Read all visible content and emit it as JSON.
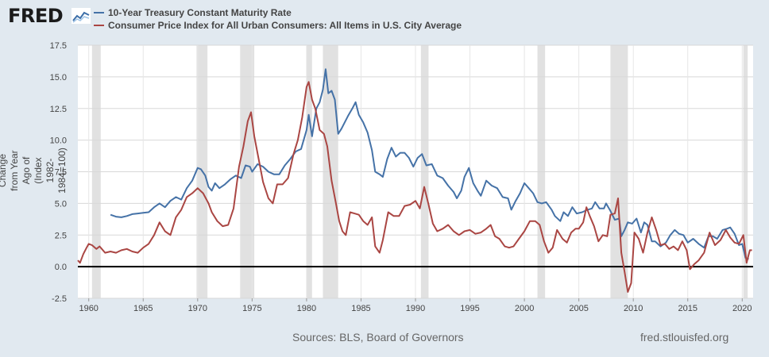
{
  "header": {
    "logo_text": "FRED",
    "logo_mark": "fred-chart-logo-icon"
  },
  "footer": {
    "sources": "Sources: BLS, Board of Governors",
    "site": "fred.stlouisfed.org"
  },
  "chart_data": {
    "type": "line",
    "title": "",
    "xlabel": "",
    "ylabel": "Percent, Percent Change from Year Ago of (Index 1982-1984=100)",
    "xlim": [
      1959,
      2021
    ],
    "ylim": [
      -2.5,
      17.5
    ],
    "yticks": [
      -2.5,
      0.0,
      2.5,
      5.0,
      7.5,
      10.0,
      12.5,
      15.0,
      17.5
    ],
    "ytick_labels": [
      "-2.5",
      "0.0",
      "2.5",
      "5.0",
      "7.5",
      "10.0",
      "12.5",
      "15.0",
      "17.5"
    ],
    "xticks": [
      1960,
      1965,
      1970,
      1975,
      1980,
      1985,
      1990,
      1995,
      2000,
      2005,
      2010,
      2015,
      2020
    ],
    "xtick_labels": [
      "1960",
      "1965",
      "1970",
      "1975",
      "1980",
      "1985",
      "1990",
      "1995",
      "2000",
      "2005",
      "2010",
      "2015",
      "2020"
    ],
    "grid": true,
    "legend_position": "top-left",
    "recessions": [
      [
        1960.3,
        1961.1
      ],
      [
        1969.9,
        1970.9
      ],
      [
        1973.9,
        1975.2
      ],
      [
        1980.0,
        1980.5
      ],
      [
        1981.5,
        1982.9
      ],
      [
        1990.5,
        1991.2
      ],
      [
        2001.2,
        2001.9
      ],
      [
        2007.9,
        2009.5
      ],
      [
        2020.1,
        2020.5
      ]
    ],
    "zero_line": 0,
    "series": [
      {
        "name": "10-Year Treasury Constant Maturity Rate",
        "color": "#4572a7",
        "x": [
          1962.0,
          1962.5,
          1963.0,
          1963.5,
          1964.0,
          1964.5,
          1965.0,
          1965.5,
          1966.0,
          1966.5,
          1967.0,
          1967.5,
          1968.0,
          1968.5,
          1969.0,
          1969.5,
          1970.0,
          1970.3,
          1970.7,
          1971.0,
          1971.3,
          1971.6,
          1972.0,
          1972.5,
          1973.0,
          1973.5,
          1974.0,
          1974.4,
          1974.8,
          1975.0,
          1975.5,
          1976.0,
          1976.5,
          1977.0,
          1977.5,
          1978.0,
          1978.5,
          1979.0,
          1979.5,
          1980.0,
          1980.2,
          1980.5,
          1980.9,
          1981.2,
          1981.5,
          1981.75,
          1982.0,
          1982.3,
          1982.6,
          1982.9,
          1983.2,
          1983.5,
          1983.8,
          1984.2,
          1984.5,
          1984.8,
          1985.2,
          1985.6,
          1986.0,
          1986.3,
          1986.7,
          1987.0,
          1987.4,
          1987.8,
          1988.2,
          1988.6,
          1989.0,
          1989.4,
          1989.8,
          1990.2,
          1990.6,
          1991.0,
          1991.5,
          1992.0,
          1992.5,
          1993.0,
          1993.5,
          1993.8,
          1994.2,
          1994.5,
          1994.9,
          1995.3,
          1995.7,
          1996.0,
          1996.5,
          1997.0,
          1997.5,
          1998.0,
          1998.5,
          1998.8,
          1999.2,
          1999.6,
          2000.0,
          2000.4,
          2000.8,
          2001.2,
          2001.6,
          2002.0,
          2002.5,
          2002.8,
          2003.3,
          2003.6,
          2004.0,
          2004.4,
          2004.8,
          2005.3,
          2005.8,
          2006.2,
          2006.5,
          2006.9,
          2007.3,
          2007.5,
          2007.9,
          2008.3,
          2008.7,
          2008.9,
          2009.2,
          2009.5,
          2009.9,
          2010.3,
          2010.7,
          2011.0,
          2011.3,
          2011.7,
          2012.0,
          2012.5,
          2013.0,
          2013.4,
          2013.8,
          2014.2,
          2014.6,
          2015.0,
          2015.5,
          2016.0,
          2016.5,
          2016.9,
          2017.3,
          2017.7,
          2018.2,
          2018.6,
          2018.9,
          2019.3,
          2019.7,
          2020.0,
          2020.3,
          2020.6
        ],
        "values": [
          4.1,
          3.95,
          3.9,
          4.0,
          4.15,
          4.2,
          4.25,
          4.3,
          4.7,
          5.0,
          4.7,
          5.2,
          5.5,
          5.3,
          6.2,
          6.8,
          7.8,
          7.7,
          7.2,
          6.3,
          6.0,
          6.6,
          6.2,
          6.5,
          6.9,
          7.2,
          7.0,
          8.0,
          7.9,
          7.5,
          8.1,
          7.9,
          7.5,
          7.3,
          7.3,
          8.0,
          8.5,
          9.1,
          9.3,
          10.8,
          12.0,
          10.3,
          12.5,
          13.0,
          14.0,
          15.6,
          13.7,
          13.9,
          13.2,
          10.5,
          10.9,
          11.4,
          11.9,
          12.5,
          13.0,
          12.0,
          11.4,
          10.6,
          9.2,
          7.5,
          7.3,
          7.1,
          8.5,
          9.4,
          8.7,
          9.0,
          9.0,
          8.6,
          7.9,
          8.6,
          8.9,
          8.0,
          8.1,
          7.2,
          7.0,
          6.4,
          5.9,
          5.4,
          6.0,
          7.1,
          7.8,
          6.6,
          6.0,
          5.6,
          6.8,
          6.4,
          6.2,
          5.5,
          5.4,
          4.5,
          5.2,
          5.8,
          6.6,
          6.2,
          5.8,
          5.1,
          5.0,
          5.1,
          4.5,
          4.0,
          3.6,
          4.3,
          4.0,
          4.7,
          4.2,
          4.3,
          4.5,
          4.6,
          5.1,
          4.6,
          4.6,
          5.0,
          4.4,
          3.7,
          3.8,
          2.4,
          2.9,
          3.5,
          3.4,
          3.8,
          2.7,
          3.5,
          3.3,
          2.0,
          2.0,
          1.6,
          1.9,
          2.5,
          2.9,
          2.6,
          2.5,
          1.9,
          2.2,
          1.8,
          1.5,
          2.4,
          2.4,
          2.2,
          2.9,
          3.0,
          3.1,
          2.6,
          1.7,
          1.8,
          0.7,
          0.6
        ]
      },
      {
        "name": "Consumer Price Index for All Urban Consumers: All Items in U.S. City Average",
        "color": "#aa4643",
        "x": [
          1959.0,
          1959.2,
          1959.5,
          1959.8,
          1960.0,
          1960.3,
          1960.7,
          1961.0,
          1961.5,
          1962.0,
          1962.5,
          1963.0,
          1963.5,
          1964.0,
          1964.5,
          1965.0,
          1965.5,
          1966.0,
          1966.5,
          1967.0,
          1967.5,
          1968.0,
          1968.5,
          1969.0,
          1969.5,
          1970.0,
          1970.5,
          1971.0,
          1971.3,
          1971.8,
          1972.3,
          1972.8,
          1973.3,
          1973.8,
          1974.2,
          1974.6,
          1974.9,
          1975.2,
          1975.6,
          1976.0,
          1976.5,
          1976.9,
          1977.3,
          1977.8,
          1978.3,
          1978.8,
          1979.2,
          1979.6,
          1980.0,
          1980.2,
          1980.5,
          1980.8,
          1981.2,
          1981.6,
          1981.9,
          1982.3,
          1982.7,
          1983.0,
          1983.3,
          1983.6,
          1984.0,
          1984.4,
          1984.8,
          1985.2,
          1985.6,
          1986.0,
          1986.3,
          1986.7,
          1987.0,
          1987.5,
          1988.0,
          1988.5,
          1989.0,
          1989.5,
          1990.0,
          1990.4,
          1990.8,
          1991.2,
          1991.6,
          1992.0,
          1992.5,
          1993.0,
          1993.5,
          1994.0,
          1994.5,
          1995.0,
          1995.5,
          1996.0,
          1996.5,
          1996.9,
          1997.3,
          1997.7,
          1998.2,
          1998.6,
          1999.0,
          1999.5,
          2000.0,
          2000.5,
          2001.0,
          2001.4,
          2001.8,
          2002.2,
          2002.6,
          2003.0,
          2003.5,
          2003.9,
          2004.3,
          2004.7,
          2005.0,
          2005.4,
          2005.7,
          2006.0,
          2006.4,
          2006.8,
          2007.2,
          2007.6,
          2007.9,
          2008.3,
          2008.6,
          2008.9,
          2009.2,
          2009.5,
          2009.8,
          2010.1,
          2010.5,
          2010.9,
          2011.3,
          2011.7,
          2012.1,
          2012.5,
          2012.9,
          2013.3,
          2013.7,
          2014.1,
          2014.5,
          2014.9,
          2015.2,
          2015.6,
          2016.0,
          2016.5,
          2017.0,
          2017.5,
          2018.0,
          2018.5,
          2018.9,
          2019.3,
          2019.7,
          2020.1,
          2020.4,
          2020.7,
          2020.9
        ],
        "values": [
          0.5,
          0.3,
          1.0,
          1.5,
          1.8,
          1.7,
          1.4,
          1.6,
          1.1,
          1.2,
          1.1,
          1.3,
          1.4,
          1.2,
          1.1,
          1.5,
          1.8,
          2.5,
          3.5,
          2.8,
          2.5,
          3.9,
          4.5,
          5.5,
          5.8,
          6.2,
          5.8,
          5.0,
          4.3,
          3.6,
          3.2,
          3.3,
          4.6,
          7.9,
          9.5,
          11.5,
          12.2,
          10.3,
          8.5,
          6.7,
          5.4,
          5.0,
          6.5,
          6.5,
          7.0,
          8.9,
          10.0,
          11.8,
          14.2,
          14.6,
          13.2,
          12.5,
          10.8,
          10.5,
          9.5,
          6.8,
          5.0,
          3.6,
          2.8,
          2.5,
          4.3,
          4.2,
          4.1,
          3.6,
          3.3,
          3.9,
          1.6,
          1.1,
          2.1,
          4.3,
          4.0,
          4.0,
          4.8,
          4.9,
          5.2,
          4.6,
          6.3,
          4.9,
          3.4,
          2.8,
          3.0,
          3.3,
          2.8,
          2.5,
          2.8,
          2.9,
          2.6,
          2.7,
          3.0,
          3.3,
          2.4,
          2.2,
          1.6,
          1.5,
          1.6,
          2.2,
          2.8,
          3.6,
          3.6,
          3.3,
          2.0,
          1.1,
          1.5,
          2.9,
          2.2,
          1.9,
          2.7,
          3.0,
          3.0,
          3.5,
          4.7,
          4.0,
          3.2,
          2.0,
          2.5,
          2.4,
          4.1,
          4.2,
          5.4,
          1.1,
          -0.4,
          -2.0,
          -1.3,
          2.7,
          2.2,
          1.1,
          2.7,
          3.9,
          2.9,
          1.7,
          1.8,
          1.4,
          1.6,
          1.3,
          2.0,
          1.3,
          -0.2,
          0.2,
          0.5,
          1.1,
          2.7,
          1.7,
          2.1,
          2.9,
          2.3,
          1.9,
          1.8,
          2.5,
          0.3,
          1.3,
          1.3
        ]
      }
    ]
  }
}
